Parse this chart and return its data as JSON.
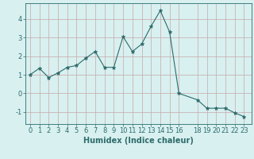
{
  "x": [
    0,
    1,
    2,
    3,
    4,
    5,
    6,
    7,
    8,
    9,
    10,
    11,
    12,
    13,
    14,
    15,
    16,
    18,
    19,
    20,
    21,
    22,
    23
  ],
  "y": [
    1.0,
    1.35,
    0.85,
    1.1,
    1.4,
    1.5,
    1.9,
    2.25,
    1.4,
    1.4,
    3.05,
    2.25,
    2.65,
    3.6,
    4.45,
    3.3,
    0.0,
    -0.35,
    -0.8,
    -0.8,
    -0.8,
    -1.05,
    -1.25
  ],
  "line_color": "#2e6b6b",
  "marker": "*",
  "marker_size": 3.5,
  "bg_color": "#d8f0f0",
  "grid_color_major": "#c8a8a8",
  "grid_color_minor": "#dcc8c8",
  "xlabel": "Humidex (Indice chaleur)",
  "xlabel_fontsize": 7,
  "tick_fontsize": 6,
  "xticks": [
    0,
    1,
    2,
    3,
    4,
    5,
    6,
    7,
    8,
    9,
    10,
    11,
    12,
    13,
    14,
    15,
    16,
    18,
    19,
    20,
    21,
    22,
    23
  ],
  "yticks": [
    -1,
    0,
    1,
    2,
    3,
    4
  ],
  "ylim": [
    -1.65,
    4.85
  ],
  "xlim": [
    -0.5,
    23.8
  ]
}
